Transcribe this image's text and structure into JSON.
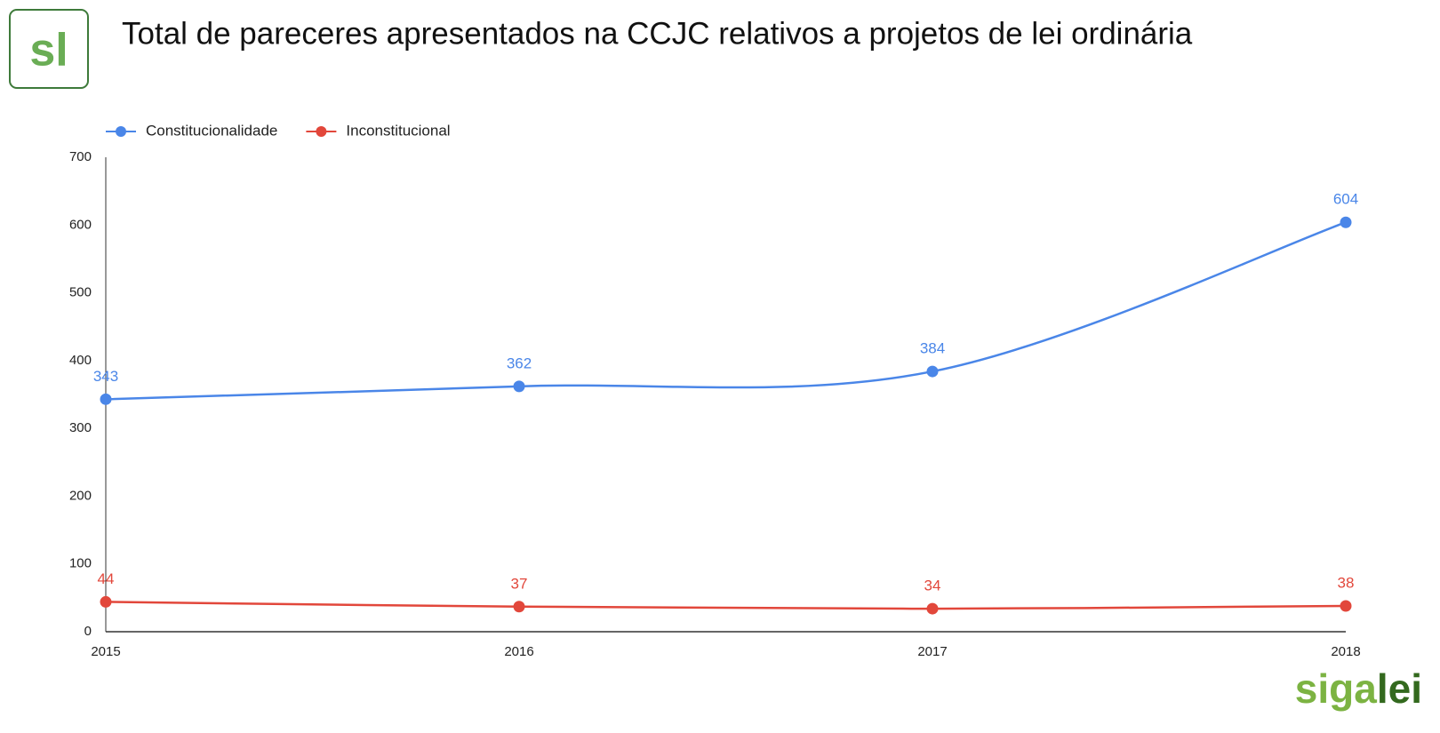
{
  "logo": "sl",
  "brand": [
    "siga",
    "lei"
  ],
  "chart_data": {
    "type": "line",
    "title": "Total de pareceres apresentados na CCJC relativos a projetos de lei ordinária",
    "categories": [
      "2015",
      "2016",
      "2017",
      "2018"
    ],
    "series": [
      {
        "name": "Constitucionalidade",
        "color": "#4a86e8",
        "values": [
          343,
          362,
          384,
          604
        ]
      },
      {
        "name": "Inconstitucional",
        "color": "#e2473b",
        "values": [
          44,
          37,
          34,
          38
        ]
      }
    ],
    "ylim": [
      0,
      700
    ],
    "yticks": [
      0,
      100,
      200,
      300,
      400,
      500,
      600,
      700
    ],
    "grid": false,
    "legend": "top",
    "smooth": true
  }
}
